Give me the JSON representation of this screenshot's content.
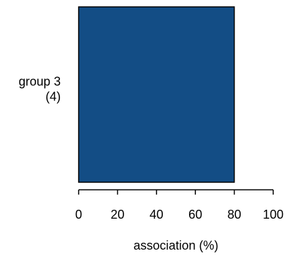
{
  "chart_data": {
    "type": "bar",
    "orientation": "horizontal",
    "title": "",
    "categories": [
      "group 3\n(4)"
    ],
    "values": [
      80
    ],
    "xlabel": "association (%)",
    "ylabel": "",
    "xlim": [
      0,
      100
    ],
    "xticks": [
      0,
      20,
      40,
      60,
      80,
      100
    ],
    "grid": false,
    "legend": "none",
    "bar_color": "#134d85",
    "bar_border_color": "#000000"
  }
}
